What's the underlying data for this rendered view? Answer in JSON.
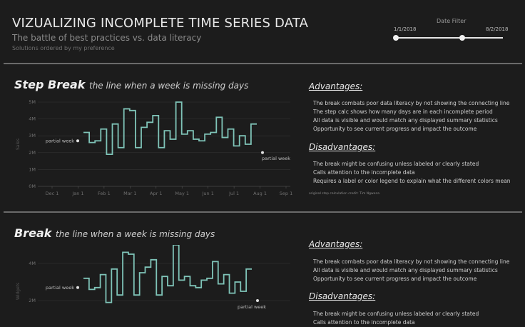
{
  "header": {
    "title": "VIZUALIZING INCOMPLETE TIME SERIES DATA",
    "subtitle": "The battle of best practices vs. data literacy",
    "note": "Solutions ordered by my preference"
  },
  "date_filter": {
    "label": "Date Filter",
    "start": "1/1/2018",
    "end": "8/2/2018",
    "start_position": 0.0,
    "end_position": 0.62
  },
  "sections": [
    {
      "title": "Step Break",
      "subtitle": "the line when a week is missing days",
      "advantages_heading": "Advantages:",
      "advantages": [
        "The break combats poor data literacy by not showing the connecting line",
        "The step calc shows how many days are in each incomplete period",
        "All data is visible and would match any displayed summary statistics",
        "Opportunity to see current progress and impact the outcome"
      ],
      "disadvantages_heading": "Disadvantages:",
      "disadvantages": [
        "The break might be confusing unless labeled or clearly stated",
        "Calls attention to the incomplete data",
        "Requires a label or color legend to explain what the different colors mean"
      ],
      "credit": "original step calculation credit: Tim Ngwena"
    },
    {
      "title": "Break",
      "subtitle": "the line when a week is missing days",
      "advantages_heading": "Advantages:",
      "advantages": [
        "The break combats poor data literacy by not showing the connecting line",
        "All data is visible and would match any displayed summary statistics",
        "Opportunity to see current progress and impact the outcome"
      ],
      "disadvantages_heading": "Disadvantages:",
      "disadvantages": [
        "The break might be confusing unless labeled or clearly stated",
        "Calls attention to the incomplete data"
      ]
    }
  ],
  "chart_data": [
    {
      "type": "line",
      "style": "step",
      "ylabel": "Sales",
      "y_ticks": [
        "0M",
        "1M",
        "2M",
        "3M",
        "4M",
        "5M"
      ],
      "ylim": [
        0,
        5000000
      ],
      "x_ticks": [
        "Dec 1",
        "Jan 1",
        "Feb 1",
        "Mar 1",
        "Apr 1",
        "May 1",
        "Jun 1",
        "Jul 1",
        "Aug 1",
        "Sep 1"
      ],
      "series_values": [
        3.2,
        2.6,
        2.7,
        3.4,
        1.9,
        3.7,
        2.3,
        4.6,
        4.5,
        2.3,
        3.5,
        3.8,
        4.2,
        2.3,
        3.3,
        2.8,
        5.0,
        3.1,
        3.3,
        2.8,
        2.7,
        3.1,
        3.2,
        4.1,
        2.9,
        3.4,
        2.4,
        3.0,
        2.5,
        3.7
      ],
      "partial_start": {
        "label": "partial week",
        "value": 2.7
      },
      "partial_end": {
        "label": "partial week",
        "value": 2.0
      },
      "color": "#7fc4b8",
      "grid": true
    },
    {
      "type": "line",
      "style": "step",
      "ylabel": "Widgets",
      "y_ticks": [
        "2M",
        "4M"
      ],
      "ylim": [
        0,
        5000000
      ],
      "series_values": [
        3.2,
        2.6,
        2.7,
        3.4,
        1.9,
        3.7,
        2.3,
        4.6,
        4.5,
        2.3,
        3.5,
        3.8,
        4.2,
        2.3,
        3.3,
        2.8,
        5.0,
        3.1,
        3.3,
        2.8,
        2.7,
        3.1,
        3.2,
        4.1,
        2.9,
        3.4,
        2.4,
        3.0,
        2.5,
        3.7
      ],
      "partial_start": {
        "label": "partial week",
        "value": 2.7
      },
      "partial_end": {
        "label": "partial week",
        "value": 2.0
      },
      "color": "#7fc4b8",
      "grid": true
    }
  ]
}
